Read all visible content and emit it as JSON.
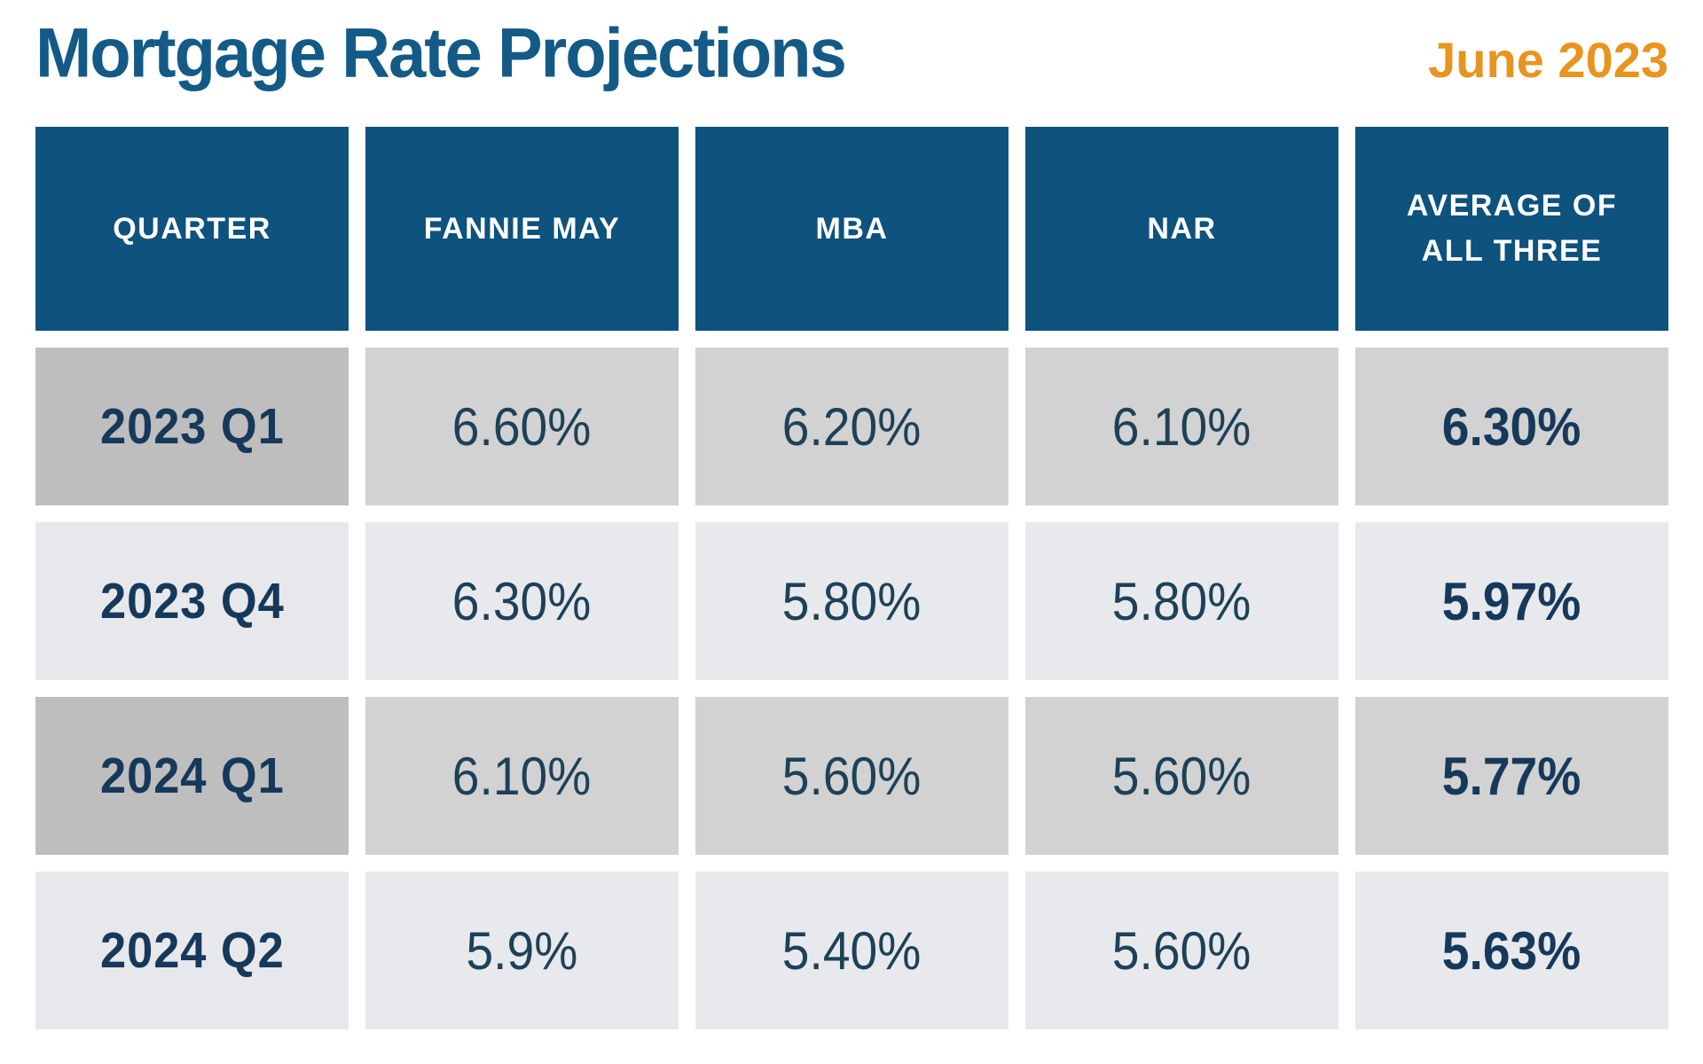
{
  "header": {
    "title": "Mortgage Rate Projections",
    "date_label": "June 2023"
  },
  "colors": {
    "header_blue": "#0e527e",
    "title_blue": "#135a87",
    "accent_orange": "#e8941f",
    "text_navy": "#1c3d5c",
    "row_dark_quarter": "#bebebe",
    "row_dark_data": "#d2d2d2",
    "row_light": "#e7e9ec"
  },
  "chart_data": {
    "type": "table",
    "title": "Mortgage Rate Projections",
    "subtitle": "June 2023",
    "columns": [
      "QUARTER",
      "FANNIE MAY",
      "MBA",
      "NAR",
      "AVERAGE OF ALL THREE"
    ],
    "rows": [
      [
        "2023 Q1",
        "6.60%",
        "6.20%",
        "6.10%",
        "6.30%"
      ],
      [
        "2023 Q4",
        "6.30%",
        "5.80%",
        "5.80%",
        "5.97%"
      ],
      [
        "2024 Q1",
        "6.10%",
        "5.60%",
        "5.60%",
        "5.77%"
      ],
      [
        "2024 Q2",
        "5.9%",
        "5.40%",
        "5.60%",
        "5.63%"
      ]
    ]
  }
}
